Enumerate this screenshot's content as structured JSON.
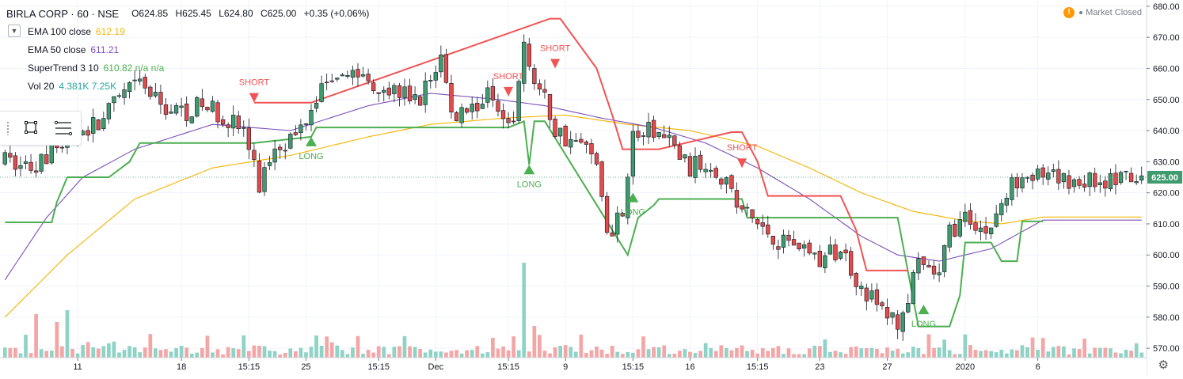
{
  "header": {
    "symbol": "BIRLA CORP · 60 · NSE",
    "ohlc": {
      "open": "O624.85",
      "high": "H625.45",
      "low": "L624.80",
      "close": "C625.00",
      "change": "+0.35 (+0.06%)"
    },
    "indicators": [
      {
        "name": "EMA 100 close",
        "value": "612.19",
        "color": "#f4b400"
      },
      {
        "name": "EMA 50 close",
        "value": "611.21",
        "color": "#7b4fb8"
      },
      {
        "name": "SuperTrend 3 10",
        "value": "610.82  n/a  n/a",
        "color": "#4caf50"
      },
      {
        "name": "Vol 20",
        "value": "4.381K  7.25K",
        "color": "#26a69a"
      }
    ]
  },
  "status": {
    "market": "Market Closed",
    "warn_symbol": "!"
  },
  "colors": {
    "up": "#3f9b6e",
    "down": "#e04b4b",
    "vol_up": "#8fd3c6",
    "vol_down": "#f4a6a6",
    "ema100": "#f4b400",
    "ema50": "#7b4fb8",
    "st_up": "#4caf50",
    "st_down": "#f05454",
    "price_tag": "#3f9b6e"
  },
  "icons": {
    "rectangle_tool": "rectangle-icon",
    "lines_tool": "text-lines-icon",
    "settings": "gear-icon"
  },
  "chart_data": {
    "type": "candlestick",
    "interval": "60",
    "ylim": [
      568,
      682
    ],
    "y_ticks": [
      680,
      670,
      660,
      650,
      640,
      630,
      620,
      610,
      600,
      590,
      580,
      570
    ],
    "y_tick_labels": [
      "680.00",
      "670.00",
      "660.00",
      "650.00",
      "640.00",
      "630.00",
      "620.00",
      "610.00",
      "600.00",
      "590.00",
      "580.00",
      "570.00"
    ],
    "last_price": 625.0,
    "last_price_label": "625.00",
    "bar_count": 220,
    "x_ticks": [
      {
        "bar": 14,
        "label": "11"
      },
      {
        "bar": 34,
        "label": "18"
      },
      {
        "bar": 47,
        "label": "15:15"
      },
      {
        "bar": 58,
        "label": "25"
      },
      {
        "bar": 72,
        "label": "15:15"
      },
      {
        "bar": 83,
        "label": "Dec"
      },
      {
        "bar": 97,
        "label": "15:15"
      },
      {
        "bar": 108,
        "label": "9"
      },
      {
        "bar": 121,
        "label": "15:15"
      },
      {
        "bar": 132,
        "label": "16"
      },
      {
        "bar": 145,
        "label": "15:15"
      },
      {
        "bar": 157,
        "label": "23"
      },
      {
        "bar": 170,
        "label": "27"
      },
      {
        "bar": 185,
        "label": "2020"
      },
      {
        "bar": 199,
        "label": "6"
      }
    ],
    "price_anchors": [
      [
        0,
        630
      ],
      [
        6,
        628
      ],
      [
        10,
        635
      ],
      [
        14,
        640
      ],
      [
        18,
        642
      ],
      [
        22,
        650
      ],
      [
        26,
        655
      ],
      [
        30,
        648
      ],
      [
        34,
        646
      ],
      [
        38,
        648
      ],
      [
        42,
        645
      ],
      [
        46,
        640
      ],
      [
        49,
        622
      ],
      [
        52,
        636
      ],
      [
        56,
        638
      ],
      [
        60,
        652
      ],
      [
        64,
        660
      ],
      [
        68,
        658
      ],
      [
        72,
        655
      ],
      [
        76,
        652
      ],
      [
        80,
        650
      ],
      [
        84,
        664
      ],
      [
        86,
        645
      ],
      [
        90,
        648
      ],
      [
        94,
        652
      ],
      [
        98,
        642
      ],
      [
        100,
        668
      ],
      [
        102,
        656
      ],
      [
        104,
        650
      ],
      [
        106,
        640
      ],
      [
        110,
        636
      ],
      [
        114,
        632
      ],
      [
        116,
        605
      ],
      [
        119,
        616
      ],
      [
        121,
        638
      ],
      [
        125,
        640
      ],
      [
        128,
        636
      ],
      [
        132,
        628
      ],
      [
        136,
        630
      ],
      [
        139,
        624
      ],
      [
        141,
        616
      ],
      [
        145,
        610
      ],
      [
        149,
        605
      ],
      [
        153,
        604
      ],
      [
        157,
        598
      ],
      [
        161,
        602
      ],
      [
        165,
        590
      ],
      [
        169,
        582
      ],
      [
        172,
        578
      ],
      [
        174,
        586
      ],
      [
        176,
        596
      ],
      [
        180,
        593
      ],
      [
        182,
        608
      ],
      [
        186,
        612
      ],
      [
        189,
        607
      ],
      [
        192,
        616
      ],
      [
        196,
        628
      ],
      [
        200,
        624
      ]
    ],
    "volume_spikes": [
      [
        6,
        55
      ],
      [
        10,
        45
      ],
      [
        12,
        60
      ],
      [
        100,
        120
      ],
      [
        102,
        40
      ],
      [
        60,
        28
      ]
    ],
    "supertrend": {
      "lower": [
        [
          0,
          610.5
        ],
        [
          9,
          610.5
        ],
        [
          10,
          617
        ],
        [
          12,
          625
        ],
        [
          20,
          625
        ],
        [
          24,
          630
        ],
        [
          26,
          636
        ],
        [
          48,
          636
        ],
        [
          59,
          638
        ],
        [
          60,
          641
        ],
        [
          97,
          641
        ],
        [
          100,
          643
        ],
        [
          101,
          629
        ],
        [
          102,
          643
        ],
        [
          104,
          643
        ],
        [
          120,
          600
        ],
        [
          122,
          612
        ],
        [
          125,
          616
        ],
        [
          126,
          618
        ],
        [
          142,
          618
        ],
        [
          143,
          612
        ],
        [
          158,
          612
        ],
        [
          172,
          612
        ],
        [
          176,
          577
        ],
        [
          182,
          577
        ],
        [
          184,
          587
        ],
        [
          185,
          604
        ],
        [
          190,
          604
        ],
        [
          192,
          598
        ],
        [
          195,
          598
        ],
        [
          196,
          610.8
        ],
        [
          200,
          610.8
        ]
      ],
      "upper": [
        [
          48,
          649
        ],
        [
          59,
          649
        ],
        [
          105,
          676
        ],
        [
          107,
          676
        ],
        [
          114,
          660
        ],
        [
          117,
          645
        ],
        [
          119,
          634
        ],
        [
          126,
          634
        ],
        [
          140,
          639.5
        ],
        [
          142,
          639.5
        ],
        [
          145,
          630
        ],
        [
          147,
          619
        ],
        [
          152,
          619
        ],
        [
          161,
          619
        ],
        [
          164,
          608
        ],
        [
          166,
          595
        ],
        [
          172,
          595
        ],
        [
          174,
          595
        ]
      ]
    },
    "ema50_anchors": [
      [
        0,
        592
      ],
      [
        8,
        612
      ],
      [
        15,
        625
      ],
      [
        25,
        634
      ],
      [
        40,
        642
      ],
      [
        55,
        640
      ],
      [
        70,
        648
      ],
      [
        82,
        652
      ],
      [
        95,
        650
      ],
      [
        104,
        648
      ],
      [
        115,
        644
      ],
      [
        125,
        641
      ],
      [
        135,
        636
      ],
      [
        145,
        628
      ],
      [
        155,
        618
      ],
      [
        165,
        606
      ],
      [
        172,
        600
      ],
      [
        180,
        598
      ],
      [
        190,
        602
      ],
      [
        200,
        611.2
      ]
    ],
    "ema100_anchors": [
      [
        0,
        580
      ],
      [
        12,
        600
      ],
      [
        25,
        618
      ],
      [
        40,
        628
      ],
      [
        55,
        632
      ],
      [
        70,
        638
      ],
      [
        82,
        642
      ],
      [
        96,
        644
      ],
      [
        108,
        645
      ],
      [
        120,
        642
      ],
      [
        132,
        640
      ],
      [
        145,
        635
      ],
      [
        155,
        628
      ],
      [
        165,
        620
      ],
      [
        175,
        614
      ],
      [
        185,
        611
      ],
      [
        192,
        610
      ],
      [
        200,
        612.2
      ]
    ],
    "signals": [
      {
        "type": "short",
        "bar": 48,
        "price": 649,
        "label": "SHORT"
      },
      {
        "type": "long",
        "bar": 59,
        "price": 638,
        "label": "LONG"
      },
      {
        "type": "short",
        "bar": 97,
        "price": 651,
        "label": "SHORT"
      },
      {
        "type": "long",
        "bar": 101,
        "price": 629,
        "label": "LONG"
      },
      {
        "type": "short",
        "bar": 106,
        "price": 660,
        "label": "SHORT"
      },
      {
        "type": "long",
        "bar": 121,
        "price": 620,
        "label": "LONG"
      },
      {
        "type": "short",
        "bar": 142,
        "price": 628,
        "label": "SHORT"
      },
      {
        "type": "long",
        "bar": 177,
        "price": 584,
        "label": "LONG"
      }
    ]
  }
}
